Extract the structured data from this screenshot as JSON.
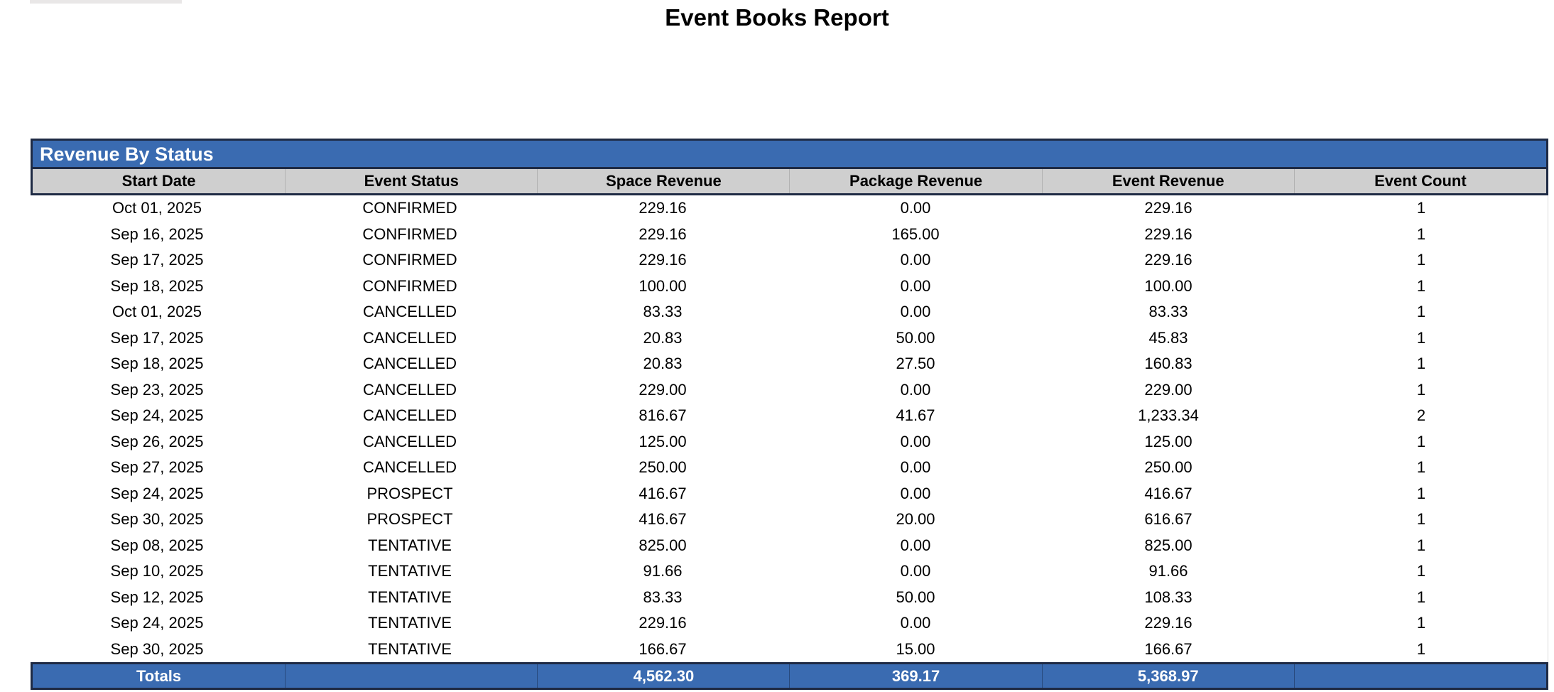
{
  "page": {
    "title": "Event Books Report"
  },
  "colors": {
    "accent_blue": "#3a6bb1",
    "header_gray": "#cfcfcf",
    "border_dark": "#1e2a44",
    "totals_text": "#ffffff"
  },
  "section": {
    "title": "Revenue By Status",
    "columns": [
      "Start Date",
      "Event Status",
      "Space Revenue",
      "Package Revenue",
      "Event Revenue",
      "Event Count"
    ],
    "rows": [
      [
        "Oct 01, 2025",
        "CONFIRMED",
        "229.16",
        "0.00",
        "229.16",
        "1"
      ],
      [
        "Sep 16, 2025",
        "CONFIRMED",
        "229.16",
        "165.00",
        "229.16",
        "1"
      ],
      [
        "Sep 17, 2025",
        "CONFIRMED",
        "229.16",
        "0.00",
        "229.16",
        "1"
      ],
      [
        "Sep 18, 2025",
        "CONFIRMED",
        "100.00",
        "0.00",
        "100.00",
        "1"
      ],
      [
        "Oct 01, 2025",
        "CANCELLED",
        "83.33",
        "0.00",
        "83.33",
        "1"
      ],
      [
        "Sep 17, 2025",
        "CANCELLED",
        "20.83",
        "50.00",
        "45.83",
        "1"
      ],
      [
        "Sep 18, 2025",
        "CANCELLED",
        "20.83",
        "27.50",
        "160.83",
        "1"
      ],
      [
        "Sep 23, 2025",
        "CANCELLED",
        "229.00",
        "0.00",
        "229.00",
        "1"
      ],
      [
        "Sep 24, 2025",
        "CANCELLED",
        "816.67",
        "41.67",
        "1,233.34",
        "2"
      ],
      [
        "Sep 26, 2025",
        "CANCELLED",
        "125.00",
        "0.00",
        "125.00",
        "1"
      ],
      [
        "Sep 27, 2025",
        "CANCELLED",
        "250.00",
        "0.00",
        "250.00",
        "1"
      ],
      [
        "Sep 24, 2025",
        "PROSPECT",
        "416.67",
        "0.00",
        "416.67",
        "1"
      ],
      [
        "Sep 30, 2025",
        "PROSPECT",
        "416.67",
        "20.00",
        "616.67",
        "1"
      ],
      [
        "Sep 08, 2025",
        "TENTATIVE",
        "825.00",
        "0.00",
        "825.00",
        "1"
      ],
      [
        "Sep 10, 2025",
        "TENTATIVE",
        "91.66",
        "0.00",
        "91.66",
        "1"
      ],
      [
        "Sep 12, 2025",
        "TENTATIVE",
        "83.33",
        "50.00",
        "108.33",
        "1"
      ],
      [
        "Sep 24, 2025",
        "TENTATIVE",
        "229.16",
        "0.00",
        "229.16",
        "1"
      ],
      [
        "Sep 30, 2025",
        "TENTATIVE",
        "166.67",
        "15.00",
        "166.67",
        "1"
      ]
    ],
    "totals": {
      "label": "Totals",
      "event_status": "",
      "space_revenue": "4,562.30",
      "package_revenue": "369.17",
      "event_revenue": "5,368.97",
      "event_count": ""
    }
  }
}
